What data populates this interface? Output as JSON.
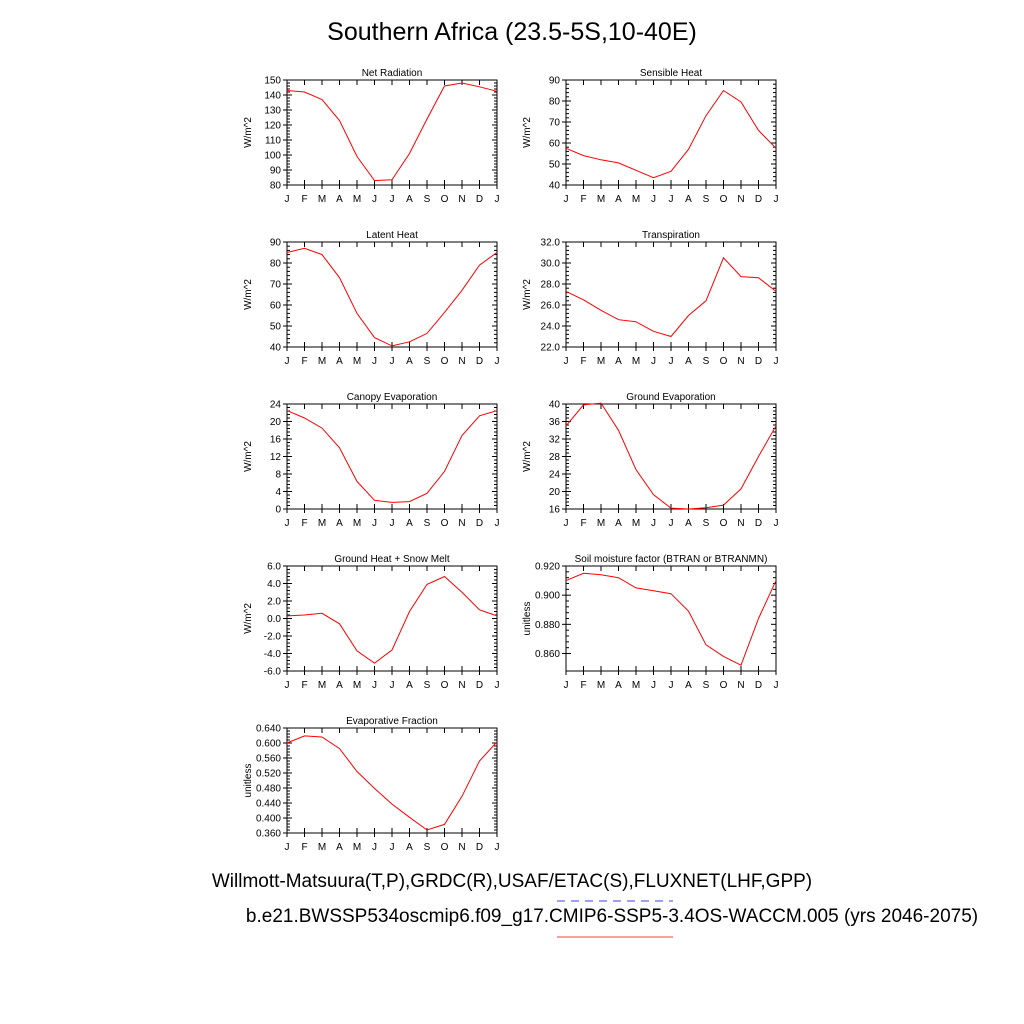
{
  "title": "Southern Africa (23.5-5S,10-40E)",
  "footer": {
    "obs_sources": "Willmott-Matsuura(T,P),GRDC(R),USAF/ETAC(S),FLUXNET(LHF,GPP)",
    "case_name": "b.e21.BWSSP534oscmip6.f09_g17.CMIP6-SSP5-3.4OS-WACCM.005 (yrs 2046-2075)",
    "obs_line_color": "#6666ff",
    "case_line_color": "#ff6666"
  },
  "colors": {
    "series": "#ff0000",
    "axis": "#000000"
  },
  "chart_data": [
    {
      "type": "line",
      "title": "Net Radiation",
      "ylabel": "W/m^2",
      "categories": [
        "J",
        "F",
        "M",
        "A",
        "M",
        "J",
        "J",
        "A",
        "S",
        "O",
        "N",
        "D",
        "J"
      ],
      "values": [
        143,
        142,
        137,
        123,
        99,
        83,
        83.5,
        101,
        124,
        146,
        148,
        145.5,
        142.5
      ],
      "ylim": [
        80,
        150
      ],
      "yticks": [
        "80",
        "90",
        "100",
        "110",
        "120",
        "130",
        "140",
        "150"
      ]
    },
    {
      "type": "line",
      "title": "Sensible Heat",
      "ylabel": "W/m^2",
      "categories": [
        "J",
        "F",
        "M",
        "A",
        "M",
        "J",
        "J",
        "A",
        "S",
        "O",
        "N",
        "D",
        "J"
      ],
      "values": [
        57.5,
        54,
        52,
        50.5,
        47,
        43.5,
        46.5,
        57,
        73,
        85,
        79.5,
        66,
        57.5
      ],
      "ylim": [
        40,
        90
      ],
      "yticks": [
        "40",
        "50",
        "60",
        "70",
        "80",
        "90"
      ]
    },
    {
      "type": "line",
      "title": "Latent Heat",
      "ylabel": "W/m^2",
      "categories": [
        "J",
        "F",
        "M",
        "A",
        "M",
        "J",
        "J",
        "A",
        "S",
        "O",
        "N",
        "D",
        "J"
      ],
      "values": [
        85,
        87,
        84,
        73,
        56,
        44.5,
        40.5,
        42.5,
        46.5,
        56.5,
        67,
        79,
        85
      ],
      "ylim": [
        40,
        90
      ],
      "yticks": [
        "40",
        "50",
        "60",
        "70",
        "80",
        "90"
      ]
    },
    {
      "type": "line",
      "title": "Transpiration",
      "ylabel": "W/m^2",
      "categories": [
        "J",
        "F",
        "M",
        "A",
        "M",
        "J",
        "J",
        "A",
        "S",
        "O",
        "N",
        "D",
        "J"
      ],
      "values": [
        27.3,
        26.5,
        25.5,
        24.6,
        24.4,
        23.5,
        23.0,
        25.0,
        26.4,
        30.5,
        28.7,
        28.6,
        27.3
      ],
      "ylim": [
        22,
        32
      ],
      "yticks": [
        "22.0",
        "24.0",
        "26.0",
        "28.0",
        "30.0",
        "32.0"
      ]
    },
    {
      "type": "line",
      "title": "Canopy Evaporation",
      "ylabel": "W/m^2",
      "categories": [
        "J",
        "F",
        "M",
        "A",
        "M",
        "J",
        "J",
        "A",
        "S",
        "O",
        "N",
        "D",
        "J"
      ],
      "values": [
        22.5,
        20.8,
        18.5,
        14.0,
        6.3,
        2.0,
        1.5,
        1.7,
        3.6,
        8.6,
        16.8,
        21.3,
        22.5
      ],
      "ylim": [
        0,
        24
      ],
      "yticks": [
        "0",
        "4",
        "8",
        "12",
        "16",
        "20",
        "24"
      ]
    },
    {
      "type": "line",
      "title": "Ground Evaporation",
      "ylabel": "W/m^2",
      "categories": [
        "J",
        "F",
        "M",
        "A",
        "M",
        "J",
        "J",
        "A",
        "S",
        "O",
        "N",
        "D",
        "J"
      ],
      "values": [
        35,
        39.8,
        40.2,
        34.0,
        25.0,
        19.3,
        16.2,
        16.0,
        16.3,
        16.9,
        20.6,
        28.0,
        35
      ],
      "ylim": [
        16,
        40
      ],
      "yticks": [
        "16",
        "20",
        "24",
        "28",
        "32",
        "36",
        "40"
      ]
    },
    {
      "type": "line",
      "title": "Ground Heat + Snow Melt",
      "ylabel": "W/m^2",
      "categories": [
        "J",
        "F",
        "M",
        "A",
        "M",
        "J",
        "J",
        "A",
        "S",
        "O",
        "N",
        "D",
        "J"
      ],
      "values": [
        0.3,
        0.4,
        0.6,
        -0.6,
        -3.7,
        -5.1,
        -3.6,
        0.8,
        3.9,
        4.8,
        3.0,
        1.0,
        0.3
      ],
      "ylim": [
        -6,
        6
      ],
      "yticks": [
        "-6.0",
        "-4.0",
        "-2.0",
        "0.0",
        "2.0",
        "4.0",
        "6.0"
      ]
    },
    {
      "type": "line",
      "title": "Soil moisture factor (BTRAN or BTRANMN)",
      "ylabel": "unitless",
      "categories": [
        "J",
        "F",
        "M",
        "A",
        "M",
        "J",
        "J",
        "A",
        "S",
        "O",
        "N",
        "D",
        "J"
      ],
      "values": [
        0.91,
        0.915,
        0.914,
        0.912,
        0.905,
        0.903,
        0.901,
        0.889,
        0.866,
        0.858,
        0.852,
        0.884,
        0.91
      ],
      "ylim": [
        0.848,
        0.92
      ],
      "yticks": [
        "0.860",
        "0.880",
        "0.900",
        "0.920"
      ]
    },
    {
      "type": "line",
      "title": "Evaporative Fraction",
      "ylabel": "unitless",
      "categories": [
        "J",
        "F",
        "M",
        "A",
        "M",
        "J",
        "J",
        "A",
        "S",
        "O",
        "N",
        "D",
        "J"
      ],
      "values": [
        0.6,
        0.619,
        0.616,
        0.585,
        0.524,
        0.479,
        0.437,
        0.402,
        0.368,
        0.383,
        0.458,
        0.552,
        0.603
      ],
      "ylim": [
        0.36,
        0.64
      ],
      "yticks": [
        "0.360",
        "0.400",
        "0.440",
        "0.480",
        "0.520",
        "0.560",
        "0.600",
        "0.640"
      ]
    }
  ]
}
